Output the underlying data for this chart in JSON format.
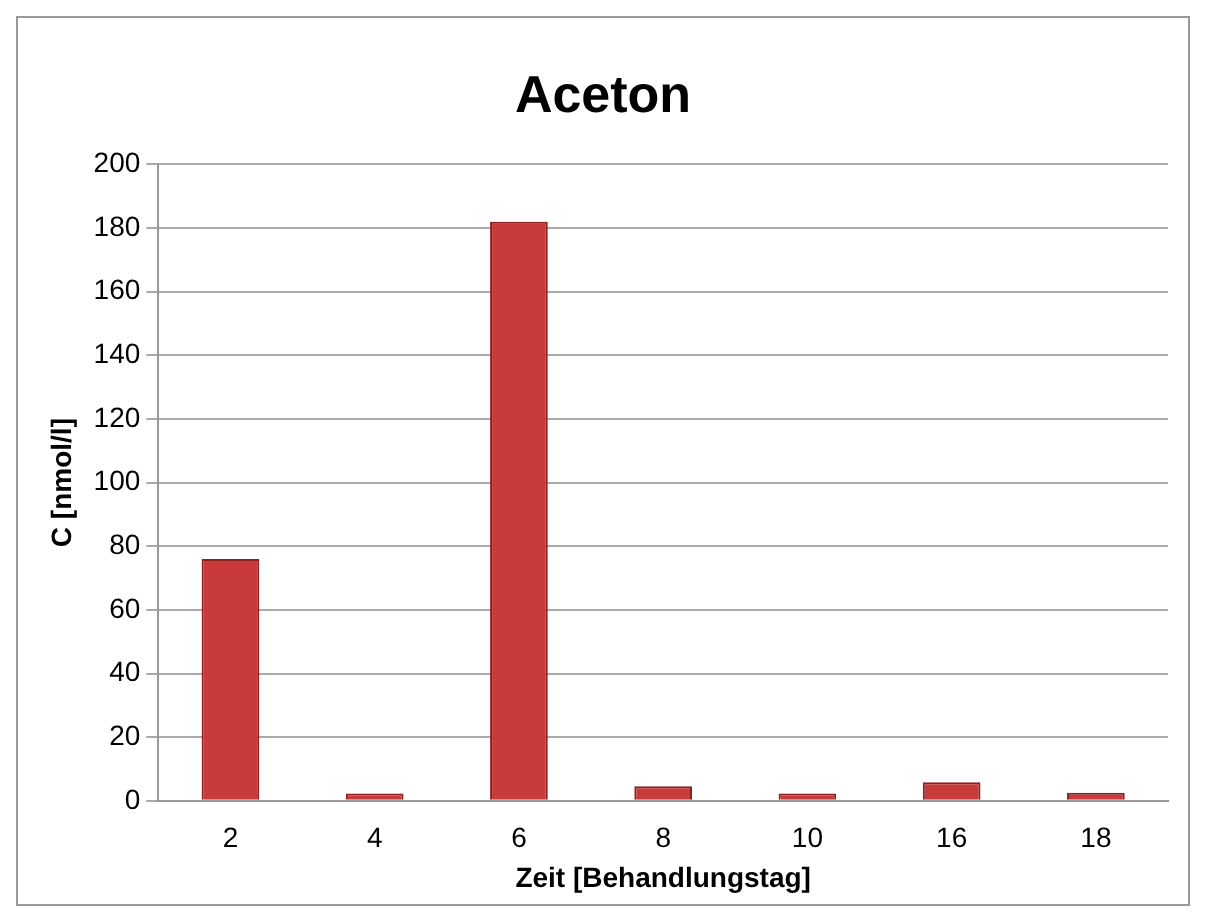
{
  "chart_data": {
    "type": "bar",
    "title": "Aceton",
    "xlabel": "Zeit [Behandlungstag]",
    "ylabel": "C [nmol/l]",
    "categories": [
      "2",
      "4",
      "6",
      "8",
      "10",
      "16",
      "18"
    ],
    "values": [
      76,
      2.3,
      182,
      4.6,
      2.3,
      5.8,
      2.5
    ],
    "color": "#c93a3a",
    "ylim": [
      0,
      200
    ],
    "yticks": [
      0,
      20,
      40,
      60,
      80,
      100,
      120,
      140,
      160,
      180,
      200
    ],
    "grid": "y",
    "legend": false
  }
}
